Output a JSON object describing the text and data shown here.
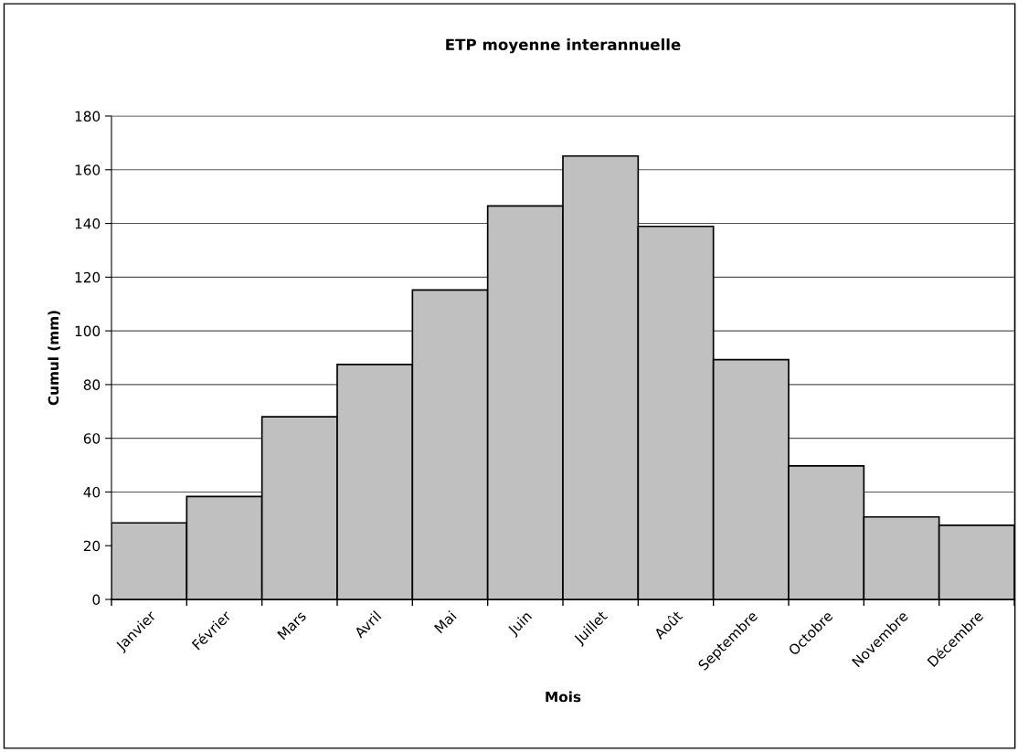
{
  "chart_data": {
    "type": "bar",
    "title": "ETP moyenne interannuelle",
    "xlabel": "Mois",
    "ylabel": "Cumul (mm)",
    "categories": [
      "Janvier",
      "Février",
      "Mars",
      "Avril",
      "Mai",
      "Juin",
      "Juillet",
      "Août",
      "Septembre",
      "Octobre",
      "Novembre",
      "Décembre"
    ],
    "values": [
      28.5,
      38.3,
      68.0,
      87.5,
      115.2,
      146.5,
      165.1,
      138.9,
      89.3,
      49.7,
      30.7,
      27.6
    ],
    "color": "#c0c0c0",
    "ylim": [
      0,
      180
    ],
    "yticks": [
      0,
      20,
      40,
      60,
      80,
      100,
      120,
      140,
      160,
      180
    ],
    "grid": "y",
    "legend": false
  }
}
